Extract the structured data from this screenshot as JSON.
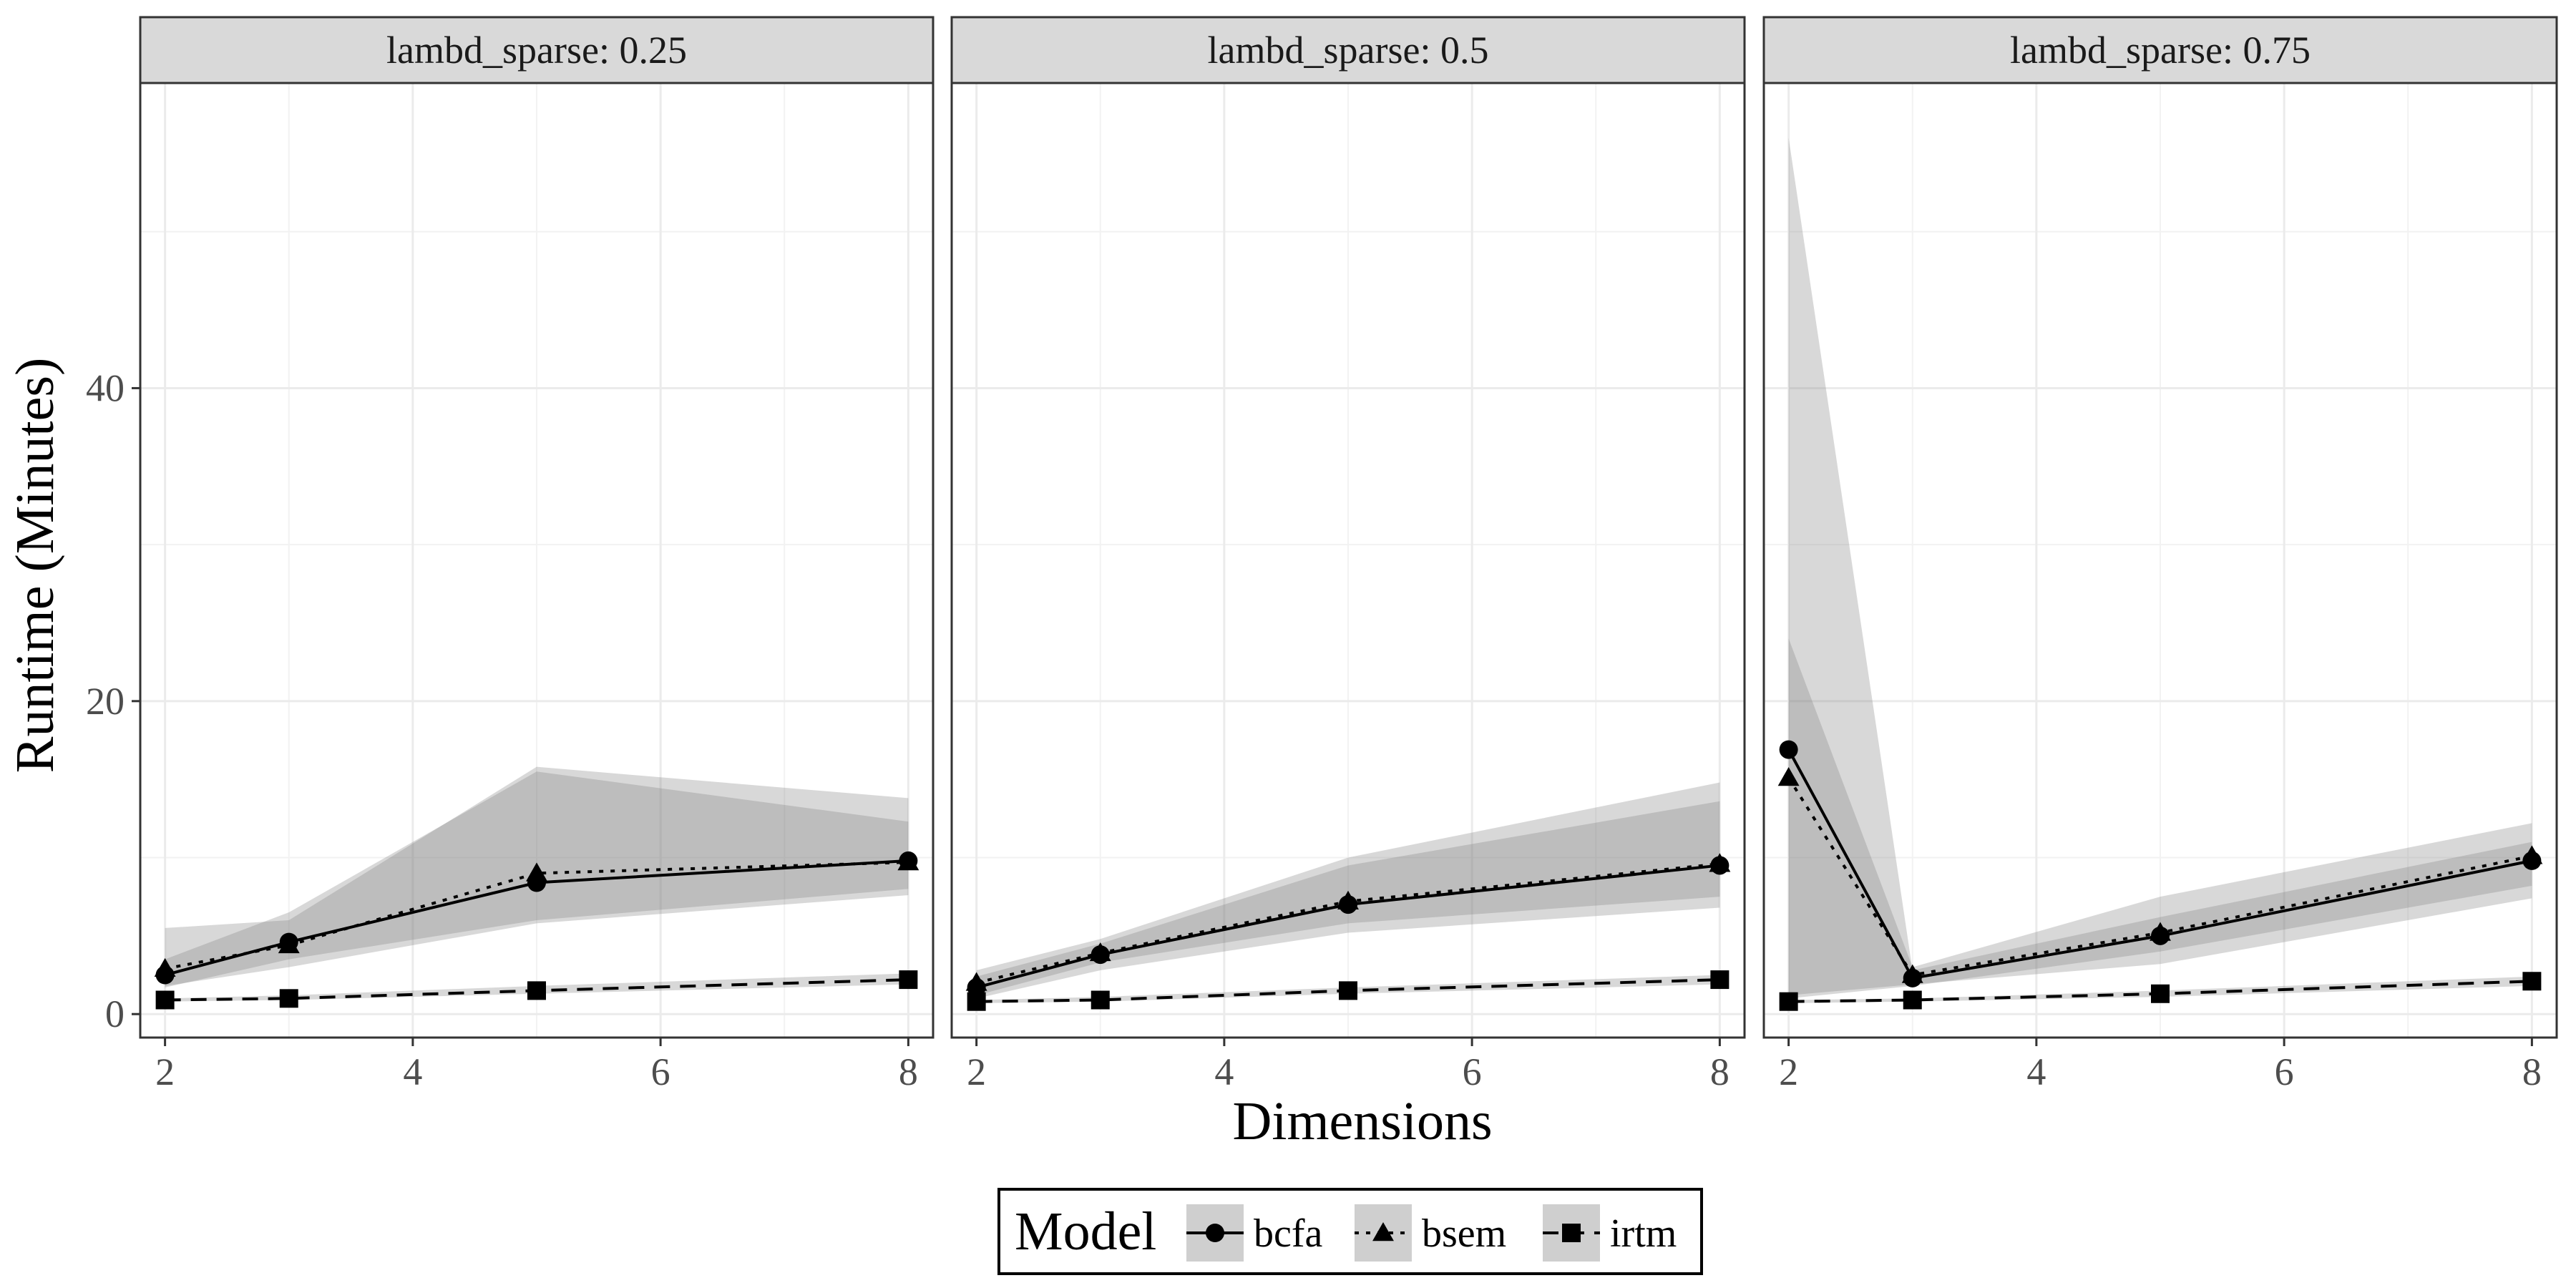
{
  "chart_data": {
    "type": "line",
    "facet_label": "lambd_sparse",
    "xlabel": "Dimensions",
    "ylabel": "Runtime (Minutes)",
    "xlim": [
      1.8,
      8.2
    ],
    "ylim": [
      -1.5,
      59.5
    ],
    "x_ticks": [
      2,
      4,
      6,
      8
    ],
    "y_ticks": [
      0,
      20,
      40
    ],
    "grid": true,
    "legend": {
      "title": "Model",
      "position": "bottom",
      "entries": [
        {
          "name": "bcfa",
          "shape": "circle",
          "linetype": "solid"
        },
        {
          "name": "bsem",
          "shape": "triangle",
          "linetype": "dotted"
        },
        {
          "name": "irtm",
          "shape": "square",
          "linetype": "dashed"
        }
      ]
    },
    "panels": [
      {
        "strip": "lambd_sparse: 0.25",
        "series": [
          {
            "name": "bcfa",
            "x": [
              2,
              3,
              5,
              8
            ],
            "y": [
              2.5,
              4.6,
              8.4,
              9.8
            ],
            "ribbon_low": [
              1.8,
              3.0,
              5.8,
              7.6
            ],
            "ribbon_high": [
              3.5,
              6.5,
              15.5,
              12.3
            ]
          },
          {
            "name": "bsem",
            "x": [
              2,
              3,
              5,
              8
            ],
            "y": [
              2.9,
              4.4,
              9.0,
              9.7
            ],
            "ribbon_low": [
              1.7,
              3.5,
              6.0,
              8.0
            ],
            "ribbon_high": [
              5.5,
              6.0,
              15.8,
              13.8
            ]
          },
          {
            "name": "irtm",
            "x": [
              2,
              3,
              5,
              8
            ],
            "y": [
              0.9,
              1.0,
              1.5,
              2.2
            ],
            "ribbon_low": [
              0.8,
              0.9,
              1.3,
              1.9
            ],
            "ribbon_high": [
              1.0,
              1.2,
              1.8,
              2.6
            ]
          }
        ]
      },
      {
        "strip": "lambd_sparse: 0.5",
        "series": [
          {
            "name": "bcfa",
            "x": [
              2,
              3,
              5,
              8
            ],
            "y": [
              1.7,
              3.8,
              7.0,
              9.5
            ],
            "ribbon_low": [
              1.2,
              3.3,
              5.8,
              7.5
            ],
            "ribbon_high": [
              2.4,
              4.5,
              9.5,
              13.6
            ]
          },
          {
            "name": "bsem",
            "x": [
              2,
              3,
              5,
              8
            ],
            "y": [
              2.0,
              3.9,
              7.2,
              9.6
            ],
            "ribbon_low": [
              1.0,
              2.8,
              5.2,
              6.8
            ],
            "ribbon_high": [
              2.8,
              4.8,
              10.0,
              14.8
            ]
          },
          {
            "name": "irtm",
            "x": [
              2,
              3,
              5,
              8
            ],
            "y": [
              0.8,
              0.9,
              1.5,
              2.2
            ],
            "ribbon_low": [
              0.7,
              0.8,
              1.3,
              1.9
            ],
            "ribbon_high": [
              0.9,
              1.1,
              1.7,
              2.5
            ]
          }
        ]
      },
      {
        "strip": "lambd_sparse: 0.75",
        "series": [
          {
            "name": "bcfa",
            "x": [
              2,
              3,
              5,
              8
            ],
            "y": [
              16.9,
              2.3,
              5.0,
              9.8
            ],
            "ribbon_low": [
              1.0,
              1.8,
              4.0,
              8.2
            ],
            "ribbon_high": [
              56.0,
              2.8,
              6.2,
              11.0
            ]
          },
          {
            "name": "bsem",
            "x": [
              2,
              3,
              5,
              8
            ],
            "y": [
              15.1,
              2.5,
              5.2,
              10.1
            ],
            "ribbon_low": [
              1.2,
              1.9,
              3.2,
              7.4
            ],
            "ribbon_high": [
              24.0,
              3.0,
              7.5,
              12.2
            ]
          },
          {
            "name": "irtm",
            "x": [
              2,
              3,
              5,
              8
            ],
            "y": [
              0.8,
              0.9,
              1.3,
              2.1
            ],
            "ribbon_low": [
              0.7,
              0.8,
              1.1,
              1.8
            ],
            "ribbon_high": [
              0.9,
              1.0,
              1.5,
              2.4
            ]
          }
        ]
      }
    ]
  }
}
